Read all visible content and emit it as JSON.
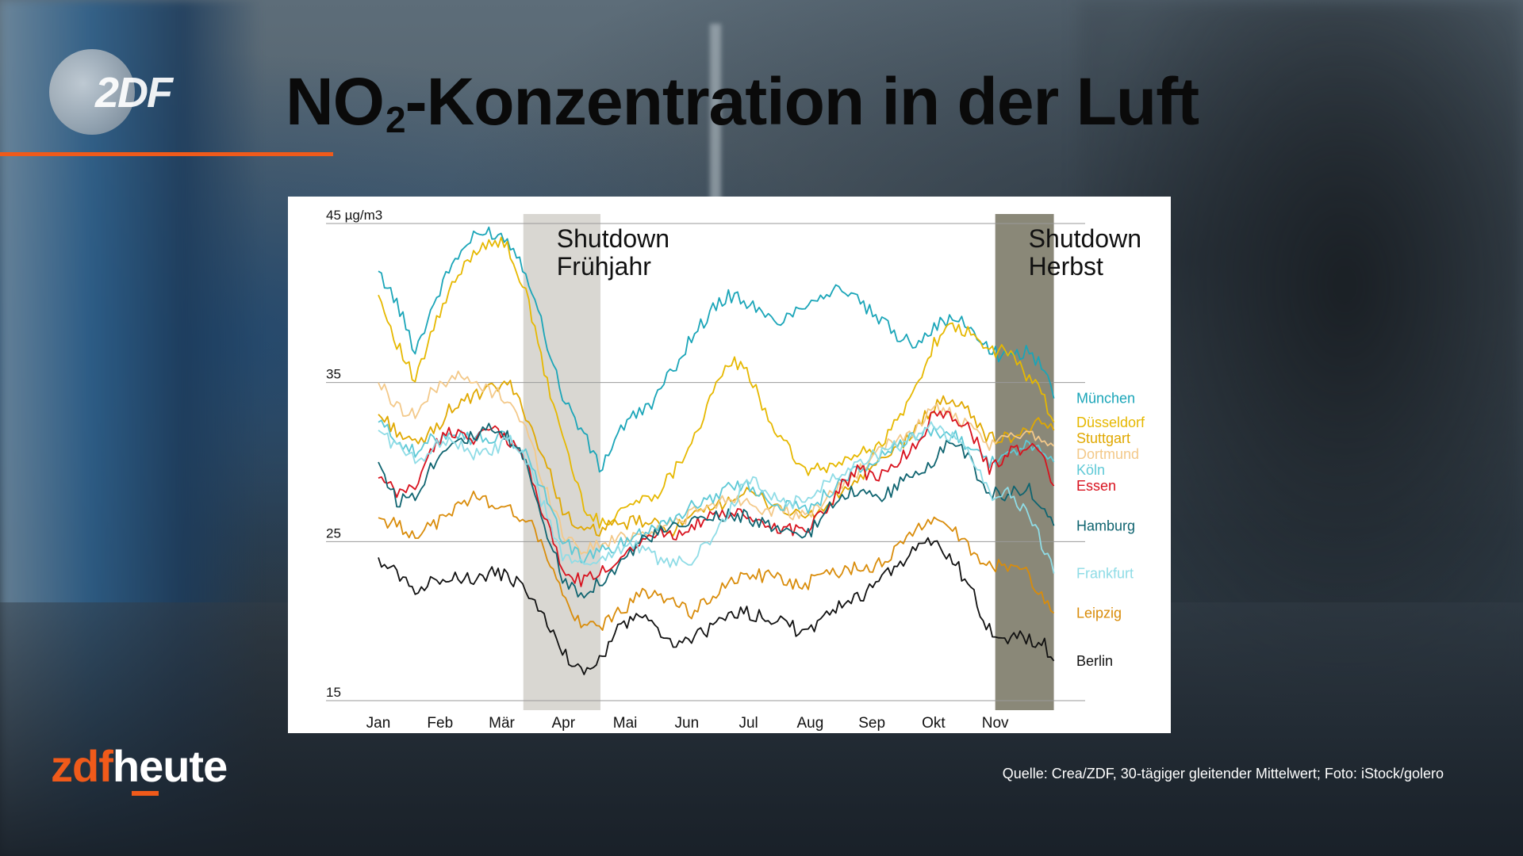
{
  "header": {
    "logo_text": "2DF",
    "title_main": "NO",
    "title_sub": "2",
    "title_rest": "-Konzentration in der Luft"
  },
  "brand": {
    "part1": "zdf",
    "part2": "heute"
  },
  "source": "Quelle: Crea/ZDF, 30-tägiger gleitender Mittelwert; Foto: iStock/golero",
  "chart_data": {
    "type": "line",
    "title": "",
    "xlabel": "",
    "ylabel": "",
    "ylim": [
      15,
      45
    ],
    "yticks": [
      {
        "value": 45,
        "label": "45 µg/m3"
      },
      {
        "value": 35,
        "label": "35"
      },
      {
        "value": 25,
        "label": "25"
      },
      {
        "value": 15,
        "label": "15"
      }
    ],
    "grid": true,
    "xlim": [
      0,
      11.2
    ],
    "months": [
      "Jan",
      "Feb",
      "Mär",
      "Apr",
      "Mai",
      "Jun",
      "Jul",
      "Aug",
      "Sep",
      "Okt",
      "Nov"
    ],
    "shading": [
      {
        "label_line1": "Shutdown",
        "label_line2": "Frühjahr",
        "x_start": 2.35,
        "x_end": 3.6,
        "color": "#d9d7d2",
        "text_color": "#111111"
      },
      {
        "label_line1": "Shutdown",
        "label_line2": "Herbst",
        "x_start": 10.0,
        "x_end": 10.95,
        "color": "#8a8878",
        "text_color": "#111111"
      }
    ],
    "series": [
      {
        "name": "München",
        "color": "#1aa5b8",
        "x": [
          0,
          0.3,
          0.6,
          0.9,
          1.2,
          1.5,
          1.8,
          2.1,
          2.4,
          2.7,
          3.0,
          3.3,
          3.6,
          3.9,
          4.2,
          4.5,
          4.8,
          5.1,
          5.4,
          5.7,
          6.0,
          6.3,
          6.6,
          6.9,
          7.2,
          7.5,
          7.8,
          8.1,
          8.4,
          8.7,
          9.0,
          9.3,
          9.6,
          9.9,
          10.2,
          10.5,
          10.8,
          10.95
        ],
        "y": [
          42,
          40,
          37,
          40,
          42.5,
          44,
          44.5,
          44,
          42,
          38,
          34,
          32,
          29.5,
          32,
          33,
          34,
          36,
          38,
          39.5,
          40.5,
          40,
          39,
          39,
          40,
          40.5,
          41,
          40,
          39,
          38,
          37.5,
          38.5,
          39,
          38.5,
          37,
          36.5,
          37,
          36,
          34
        ]
      },
      {
        "name": "Düsseldorf",
        "color": "#e6b800",
        "x": [
          0,
          0.3,
          0.6,
          0.9,
          1.2,
          1.5,
          1.8,
          2.1,
          2.4,
          2.7,
          3.0,
          3.3,
          3.6,
          3.9,
          4.2,
          4.5,
          4.8,
          5.1,
          5.4,
          5.7,
          6.0,
          6.3,
          6.6,
          6.9,
          7.2,
          7.5,
          7.8,
          8.1,
          8.4,
          8.7,
          9.0,
          9.3,
          9.6,
          9.9,
          10.2,
          10.5,
          10.8,
          10.95
        ],
        "y": [
          40.5,
          37.5,
          35,
          38.5,
          41,
          43,
          44,
          43.5,
          40.5,
          35.5,
          31.5,
          27.5,
          26,
          27,
          27.5,
          28,
          29.5,
          31.5,
          34,
          36.5,
          35.5,
          33,
          31,
          29.5,
          29.5,
          30,
          30.5,
          31,
          32.5,
          34.5,
          37.5,
          38.5,
          38,
          37,
          37,
          35.5,
          34,
          32.5
        ]
      },
      {
        "name": "Stuttgart",
        "color": "#e0a800",
        "x": [
          0,
          0.3,
          0.6,
          0.9,
          1.2,
          1.5,
          1.8,
          2.1,
          2.4,
          2.7,
          3.0,
          3.3,
          3.6,
          3.9,
          4.2,
          4.5,
          4.8,
          5.1,
          5.4,
          5.7,
          6.0,
          6.3,
          6.6,
          6.9,
          7.2,
          7.5,
          7.8,
          8.1,
          8.4,
          8.7,
          9.0,
          9.3,
          9.6,
          9.9,
          10.2,
          10.5,
          10.8,
          10.95
        ],
        "y": [
          33,
          32,
          31,
          32,
          33.5,
          34,
          34.5,
          35,
          33,
          30,
          27,
          25.5,
          25.8,
          26,
          26.3,
          26,
          25.8,
          26.5,
          27,
          27.8,
          28,
          27.5,
          27,
          26.5,
          27,
          28,
          29,
          29.8,
          30.8,
          32,
          33.5,
          34,
          33,
          31.5,
          31.5,
          32,
          32.5,
          32
        ]
      },
      {
        "name": "Dortmund",
        "color": "#f3c98a",
        "x": [
          0,
          0.3,
          0.6,
          0.9,
          1.2,
          1.5,
          1.8,
          2.1,
          2.4,
          2.7,
          3.0,
          3.3,
          3.6,
          3.9,
          4.2,
          4.5,
          4.8,
          5.1,
          5.4,
          5.7,
          6.0,
          6.3,
          6.6,
          6.9,
          7.2,
          7.5,
          7.8,
          8.1,
          8.4,
          8.7,
          9.0,
          9.3,
          9.6,
          9.9,
          10.2,
          10.5,
          10.8,
          10.95
        ],
        "y": [
          35,
          33.5,
          33,
          34.5,
          35.5,
          35,
          34.5,
          34,
          32,
          28.5,
          25.5,
          24.5,
          24.8,
          25.2,
          25.5,
          25.8,
          26.2,
          26.8,
          27.2,
          27.8,
          27.5,
          27,
          26.8,
          26.5,
          27.5,
          28.5,
          29.5,
          30.5,
          31.5,
          32,
          33.5,
          33,
          32,
          31,
          31.5,
          32,
          31.5,
          31
        ]
      },
      {
        "name": "Köln",
        "color": "#5ec9d6",
        "x": [
          0,
          0.3,
          0.6,
          0.9,
          1.2,
          1.5,
          1.8,
          2.1,
          2.4,
          2.7,
          3.0,
          3.3,
          3.6,
          3.9,
          4.2,
          4.5,
          4.8,
          5.1,
          5.4,
          5.7,
          6.0,
          6.3,
          6.6,
          6.9,
          7.2,
          7.5,
          7.8,
          8.1,
          8.4,
          8.7,
          9.0,
          9.3,
          9.6,
          9.9,
          10.2,
          10.5,
          10.8,
          10.95
        ],
        "y": [
          32.5,
          31.5,
          30.5,
          31.5,
          32,
          31.5,
          31.5,
          31.5,
          30.5,
          28,
          25,
          24,
          24.3,
          24.8,
          25.5,
          26,
          26.5,
          27.2,
          27.8,
          28.5,
          28.5,
          27.8,
          27.3,
          27,
          27.8,
          28.8,
          29.5,
          30.2,
          31,
          31.5,
          32,
          31.8,
          31,
          30,
          30.5,
          31,
          30.5,
          30
        ]
      },
      {
        "name": "Essen",
        "color": "#d8121e",
        "x": [
          0,
          0.3,
          0.6,
          0.9,
          1.2,
          1.5,
          1.8,
          2.1,
          2.4,
          2.7,
          3.0,
          3.3,
          3.6,
          3.9,
          4.2,
          4.5,
          4.8,
          5.1,
          5.4,
          5.7,
          6.0,
          6.3,
          6.6,
          6.9,
          7.2,
          7.5,
          7.8,
          8.1,
          8.4,
          8.7,
          9.0,
          9.3,
          9.6,
          9.9,
          10.2,
          10.5,
          10.8,
          10.95
        ],
        "y": [
          29,
          28,
          28.5,
          31,
          32,
          31.5,
          32,
          31.5,
          30,
          26.5,
          23,
          22.5,
          23,
          24,
          25,
          25.5,
          25.5,
          26,
          26.5,
          26.8,
          26.5,
          26,
          25.8,
          25.8,
          26.8,
          28.5,
          29.5,
          29,
          30,
          31,
          33,
          33,
          32,
          29.5,
          30.5,
          31,
          30.5,
          28.5
        ]
      },
      {
        "name": "Hamburg",
        "color": "#0f6470",
        "x": [
          0,
          0.3,
          0.6,
          0.9,
          1.2,
          1.5,
          1.8,
          2.1,
          2.4,
          2.7,
          3.0,
          3.3,
          3.6,
          3.9,
          4.2,
          4.5,
          4.8,
          5.1,
          5.4,
          5.7,
          6.0,
          6.3,
          6.6,
          6.9,
          7.2,
          7.5,
          7.8,
          8.1,
          8.4,
          8.7,
          9.0,
          9.3,
          9.6,
          9.9,
          10.2,
          10.5,
          10.8,
          10.95
        ],
        "y": [
          30,
          27.5,
          28,
          30,
          31.5,
          31.5,
          32,
          31.5,
          30,
          26,
          22.5,
          21.8,
          22.5,
          23.5,
          24.8,
          25.5,
          25.8,
          26.3,
          26.5,
          26.8,
          26.5,
          26,
          25.5,
          25.2,
          26.5,
          28,
          28.3,
          27.5,
          28.5,
          29.3,
          30,
          31.5,
          30,
          28,
          28,
          28.5,
          27,
          26
        ]
      },
      {
        "name": "Frankfurt",
        "color": "#8fdce6",
        "x": [
          0,
          0.3,
          0.6,
          0.9,
          1.2,
          1.5,
          1.8,
          2.1,
          2.4,
          2.7,
          3.0,
          3.3,
          3.6,
          3.9,
          4.2,
          4.5,
          4.8,
          5.1,
          5.4,
          5.7,
          6.0,
          6.3,
          6.6,
          6.9,
          7.2,
          7.5,
          7.8,
          8.1,
          8.4,
          8.7,
          9.0,
          9.3,
          9.6,
          9.9,
          10.2,
          10.5,
          10.8,
          10.95
        ],
        "y": [
          32,
          31,
          30,
          31,
          31.5,
          30.5,
          30.5,
          31.5,
          30,
          27,
          24,
          23.5,
          24,
          24.5,
          24.8,
          24,
          23.5,
          24,
          25,
          27,
          29,
          28,
          27.5,
          27.5,
          28.5,
          29.5,
          30,
          30.5,
          31,
          31.5,
          32.5,
          31.5,
          30.5,
          28,
          28,
          27,
          24.5,
          23
        ]
      },
      {
        "name": "Leipzig",
        "color": "#d98c0a",
        "x": [
          0,
          0.3,
          0.6,
          0.9,
          1.2,
          1.5,
          1.8,
          2.1,
          2.4,
          2.7,
          3.0,
          3.3,
          3.6,
          3.9,
          4.2,
          4.5,
          4.8,
          5.1,
          5.4,
          5.7,
          6.0,
          6.3,
          6.6,
          6.9,
          7.2,
          7.5,
          7.8,
          8.1,
          8.4,
          8.7,
          9.0,
          9.3,
          9.6,
          9.9,
          10.2,
          10.5,
          10.8,
          10.95
        ],
        "y": [
          26.5,
          26,
          25.5,
          26,
          27,
          27.8,
          27.5,
          27,
          26.5,
          24.5,
          21.5,
          19.5,
          19.8,
          20.5,
          21.5,
          22,
          21,
          20.5,
          21.5,
          22.5,
          23,
          22.8,
          22.5,
          22.3,
          22.8,
          23.2,
          23.5,
          23.5,
          24.5,
          25.8,
          26.5,
          25.8,
          24.5,
          23.5,
          23.5,
          23,
          21.5,
          20.5
        ]
      },
      {
        "name": "Berlin",
        "color": "#111111",
        "x": [
          0,
          0.3,
          0.6,
          0.9,
          1.2,
          1.5,
          1.8,
          2.1,
          2.4,
          2.7,
          3.0,
          3.3,
          3.6,
          3.9,
          4.2,
          4.5,
          4.8,
          5.1,
          5.4,
          5.7,
          6.0,
          6.3,
          6.6,
          6.9,
          7.2,
          7.5,
          7.8,
          8.1,
          8.4,
          8.7,
          9.0,
          9.3,
          9.6,
          9.9,
          10.2,
          10.5,
          10.8,
          10.95
        ],
        "y": [
          24,
          23,
          22,
          22.5,
          23,
          22.5,
          23,
          22.8,
          22,
          20,
          18,
          16.8,
          17.5,
          19.5,
          20.5,
          19.5,
          18.5,
          19,
          19.5,
          20.5,
          20.5,
          20.2,
          20,
          19,
          20,
          21,
          21.5,
          22.5,
          23.5,
          24.5,
          25,
          24,
          22,
          19.5,
          19,
          19,
          18.5,
          17.5
        ]
      }
    ]
  }
}
